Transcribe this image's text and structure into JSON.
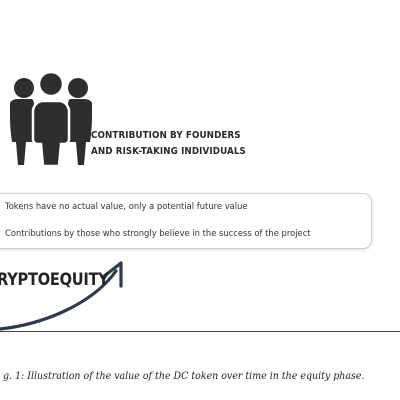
{
  "diagram": {
    "icon": "group-of-people-icon",
    "heading_line_1": "CONTRIBUTION BY FOUNDERS",
    "heading_line_2": "AND RISK-TAKING INDIVIDUALS",
    "notes": [
      "Tokens have no actual value, only a potential future value",
      "Contributions by those who strongly believe in the success of the project"
    ],
    "phase_label": "RYPTOEQUITY",
    "arrow_icon": "curved-arrow-icon",
    "caption": "g. 1: Illustration of the value of the DC token over time in the equity phase."
  },
  "colors": {
    "icon": "#2e2e2e",
    "text": "#2a2a2a",
    "box_border": "#cfcfcf",
    "arrow": "#2f3a4a"
  }
}
